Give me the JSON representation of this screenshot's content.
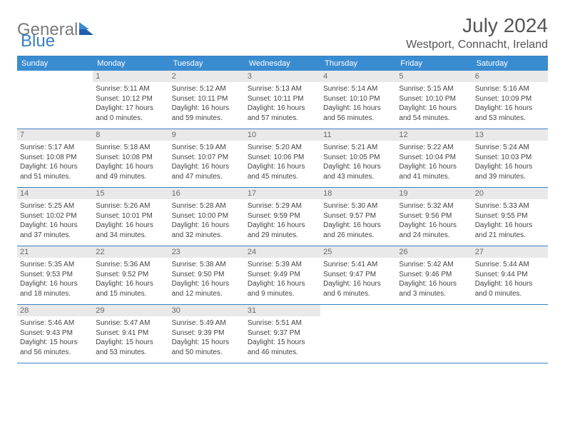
{
  "brand": {
    "part1": "General",
    "part2": "Blue"
  },
  "title": "July 2024",
  "location": "Westport, Connacht, Ireland",
  "dayHeaders": [
    "Sunday",
    "Monday",
    "Tuesday",
    "Wednesday",
    "Thursday",
    "Friday",
    "Saturday"
  ],
  "colors": {
    "header_bg": "#3a8cd1",
    "border": "#3a7fc4",
    "daynum_bg": "#e9e9e9",
    "text": "#444444",
    "title": "#555555"
  },
  "typography": {
    "title_fontsize": 28,
    "location_fontsize": 16,
    "header_fontsize": 11,
    "cell_fontsize": 10
  },
  "layout": {
    "cols": 7,
    "rows": 5,
    "first_day_col": 1
  },
  "days": [
    {
      "n": "1",
      "sunrise": "Sunrise: 5:11 AM",
      "sunset": "Sunset: 10:12 PM",
      "day1": "Daylight: 17 hours",
      "day2": "and 0 minutes."
    },
    {
      "n": "2",
      "sunrise": "Sunrise: 5:12 AM",
      "sunset": "Sunset: 10:11 PM",
      "day1": "Daylight: 16 hours",
      "day2": "and 59 minutes."
    },
    {
      "n": "3",
      "sunrise": "Sunrise: 5:13 AM",
      "sunset": "Sunset: 10:11 PM",
      "day1": "Daylight: 16 hours",
      "day2": "and 57 minutes."
    },
    {
      "n": "4",
      "sunrise": "Sunrise: 5:14 AM",
      "sunset": "Sunset: 10:10 PM",
      "day1": "Daylight: 16 hours",
      "day2": "and 56 minutes."
    },
    {
      "n": "5",
      "sunrise": "Sunrise: 5:15 AM",
      "sunset": "Sunset: 10:10 PM",
      "day1": "Daylight: 16 hours",
      "day2": "and 54 minutes."
    },
    {
      "n": "6",
      "sunrise": "Sunrise: 5:16 AM",
      "sunset": "Sunset: 10:09 PM",
      "day1": "Daylight: 16 hours",
      "day2": "and 53 minutes."
    },
    {
      "n": "7",
      "sunrise": "Sunrise: 5:17 AM",
      "sunset": "Sunset: 10:08 PM",
      "day1": "Daylight: 16 hours",
      "day2": "and 51 minutes."
    },
    {
      "n": "8",
      "sunrise": "Sunrise: 5:18 AM",
      "sunset": "Sunset: 10:08 PM",
      "day1": "Daylight: 16 hours",
      "day2": "and 49 minutes."
    },
    {
      "n": "9",
      "sunrise": "Sunrise: 5:19 AM",
      "sunset": "Sunset: 10:07 PM",
      "day1": "Daylight: 16 hours",
      "day2": "and 47 minutes."
    },
    {
      "n": "10",
      "sunrise": "Sunrise: 5:20 AM",
      "sunset": "Sunset: 10:06 PM",
      "day1": "Daylight: 16 hours",
      "day2": "and 45 minutes."
    },
    {
      "n": "11",
      "sunrise": "Sunrise: 5:21 AM",
      "sunset": "Sunset: 10:05 PM",
      "day1": "Daylight: 16 hours",
      "day2": "and 43 minutes."
    },
    {
      "n": "12",
      "sunrise": "Sunrise: 5:22 AM",
      "sunset": "Sunset: 10:04 PM",
      "day1": "Daylight: 16 hours",
      "day2": "and 41 minutes."
    },
    {
      "n": "13",
      "sunrise": "Sunrise: 5:24 AM",
      "sunset": "Sunset: 10:03 PM",
      "day1": "Daylight: 16 hours",
      "day2": "and 39 minutes."
    },
    {
      "n": "14",
      "sunrise": "Sunrise: 5:25 AM",
      "sunset": "Sunset: 10:02 PM",
      "day1": "Daylight: 16 hours",
      "day2": "and 37 minutes."
    },
    {
      "n": "15",
      "sunrise": "Sunrise: 5:26 AM",
      "sunset": "Sunset: 10:01 PM",
      "day1": "Daylight: 16 hours",
      "day2": "and 34 minutes."
    },
    {
      "n": "16",
      "sunrise": "Sunrise: 5:28 AM",
      "sunset": "Sunset: 10:00 PM",
      "day1": "Daylight: 16 hours",
      "day2": "and 32 minutes."
    },
    {
      "n": "17",
      "sunrise": "Sunrise: 5:29 AM",
      "sunset": "Sunset: 9:59 PM",
      "day1": "Daylight: 16 hours",
      "day2": "and 29 minutes."
    },
    {
      "n": "18",
      "sunrise": "Sunrise: 5:30 AM",
      "sunset": "Sunset: 9:57 PM",
      "day1": "Daylight: 16 hours",
      "day2": "and 26 minutes."
    },
    {
      "n": "19",
      "sunrise": "Sunrise: 5:32 AM",
      "sunset": "Sunset: 9:56 PM",
      "day1": "Daylight: 16 hours",
      "day2": "and 24 minutes."
    },
    {
      "n": "20",
      "sunrise": "Sunrise: 5:33 AM",
      "sunset": "Sunset: 9:55 PM",
      "day1": "Daylight: 16 hours",
      "day2": "and 21 minutes."
    },
    {
      "n": "21",
      "sunrise": "Sunrise: 5:35 AM",
      "sunset": "Sunset: 9:53 PM",
      "day1": "Daylight: 16 hours",
      "day2": "and 18 minutes."
    },
    {
      "n": "22",
      "sunrise": "Sunrise: 5:36 AM",
      "sunset": "Sunset: 9:52 PM",
      "day1": "Daylight: 16 hours",
      "day2": "and 15 minutes."
    },
    {
      "n": "23",
      "sunrise": "Sunrise: 5:38 AM",
      "sunset": "Sunset: 9:50 PM",
      "day1": "Daylight: 16 hours",
      "day2": "and 12 minutes."
    },
    {
      "n": "24",
      "sunrise": "Sunrise: 5:39 AM",
      "sunset": "Sunset: 9:49 PM",
      "day1": "Daylight: 16 hours",
      "day2": "and 9 minutes."
    },
    {
      "n": "25",
      "sunrise": "Sunrise: 5:41 AM",
      "sunset": "Sunset: 9:47 PM",
      "day1": "Daylight: 16 hours",
      "day2": "and 6 minutes."
    },
    {
      "n": "26",
      "sunrise": "Sunrise: 5:42 AM",
      "sunset": "Sunset: 9:46 PM",
      "day1": "Daylight: 16 hours",
      "day2": "and 3 minutes."
    },
    {
      "n": "27",
      "sunrise": "Sunrise: 5:44 AM",
      "sunset": "Sunset: 9:44 PM",
      "day1": "Daylight: 16 hours",
      "day2": "and 0 minutes."
    },
    {
      "n": "28",
      "sunrise": "Sunrise: 5:46 AM",
      "sunset": "Sunset: 9:43 PM",
      "day1": "Daylight: 15 hours",
      "day2": "and 56 minutes."
    },
    {
      "n": "29",
      "sunrise": "Sunrise: 5:47 AM",
      "sunset": "Sunset: 9:41 PM",
      "day1": "Daylight: 15 hours",
      "day2": "and 53 minutes."
    },
    {
      "n": "30",
      "sunrise": "Sunrise: 5:49 AM",
      "sunset": "Sunset: 9:39 PM",
      "day1": "Daylight: 15 hours",
      "day2": "and 50 minutes."
    },
    {
      "n": "31",
      "sunrise": "Sunrise: 5:51 AM",
      "sunset": "Sunset: 9:37 PM",
      "day1": "Daylight: 15 hours",
      "day2": "and 46 minutes."
    }
  ]
}
